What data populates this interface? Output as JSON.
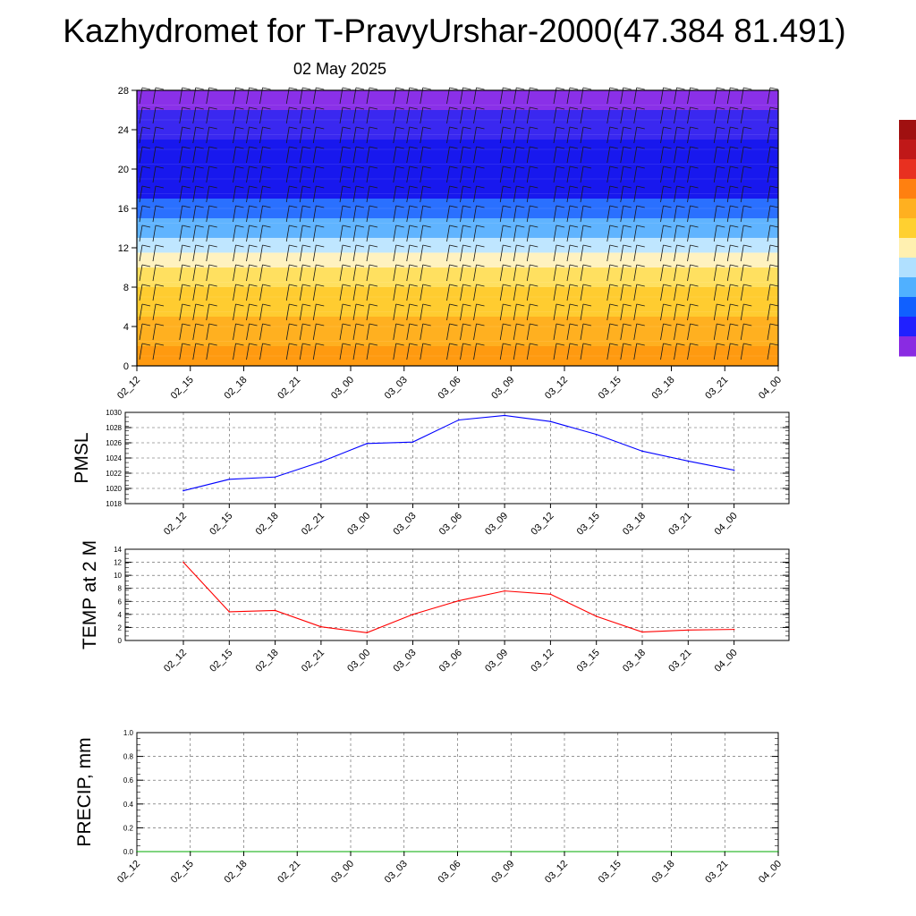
{
  "header": {
    "title": "Kazhydromet for T-PravyUrshar-2000(47.384 81.491)",
    "date": "02 May 2025"
  },
  "colors": {
    "pmsl_line": "#0000ff",
    "temp_line": "#ff0000",
    "precip_line": "#00aa00",
    "colorbar": [
      "#8a2be2",
      "#2020ff",
      "#1060ff",
      "#50b0ff",
      "#b0e0ff",
      "#fff0b0",
      "#ffd030",
      "#ffb020",
      "#ff8010",
      "#e83020",
      "#c01818",
      "#a01010",
      "#ffffff"
    ]
  },
  "chart_data": [
    {
      "type": "heatmap",
      "name": "vertical-profile",
      "x_tick_labels": [
        "02_12",
        "02_15",
        "02_18",
        "02_21",
        "03_00",
        "03_03",
        "03_06",
        "03_09",
        "03_12",
        "03_15",
        "03_18",
        "03_21",
        "04_00"
      ],
      "y_ticks": [
        0,
        4,
        8,
        12,
        16,
        20,
        24,
        28
      ],
      "ylim": [
        0,
        28
      ],
      "bands": [
        {
          "y_from": 0,
          "y_to": 2,
          "color": "#ff9a10"
        },
        {
          "y_from": 2,
          "y_to": 5,
          "color": "#ffb020"
        },
        {
          "y_from": 5,
          "y_to": 8,
          "color": "#ffcc30"
        },
        {
          "y_from": 8,
          "y_to": 10,
          "color": "#ffe060"
        },
        {
          "y_from": 10,
          "y_to": 11.5,
          "color": "#fff2c0"
        },
        {
          "y_from": 11.5,
          "y_to": 13,
          "color": "#bfe6ff"
        },
        {
          "y_from": 13,
          "y_to": 15,
          "color": "#60b4ff"
        },
        {
          "y_from": 15,
          "y_to": 17,
          "color": "#2a70ff"
        },
        {
          "y_from": 17,
          "y_to": 23,
          "color": "#1818ee"
        },
        {
          "y_from": 23,
          "y_to": 26,
          "color": "#3a28f0"
        },
        {
          "y_from": 26,
          "y_to": 28,
          "color": "#8a30e8"
        }
      ],
      "wind_barb_levels": [
        1,
        3,
        5,
        7,
        9,
        11,
        13,
        15,
        17,
        19,
        21,
        23,
        25,
        27
      ],
      "grid": false
    },
    {
      "type": "line",
      "name": "pmsl",
      "ylabel": "PMSL",
      "x_tick_labels": [
        "02_12",
        "02_15",
        "02_18",
        "02_21",
        "03_00",
        "03_03",
        "03_06",
        "03_09",
        "03_12",
        "03_15",
        "03_18",
        "03_21",
        "04_00"
      ],
      "y_ticks": [
        1018,
        1020,
        1022,
        1024,
        1026,
        1028,
        1030
      ],
      "ylim": [
        1018,
        1030
      ],
      "series": [
        {
          "values": [
            1019.7,
            1021.2,
            1021.5,
            1023.5,
            1025.9,
            1026.1,
            1029.0,
            1029.6,
            1028.8,
            1027.1,
            1024.9,
            1023.6,
            1022.4
          ]
        }
      ],
      "grid": true
    },
    {
      "type": "line",
      "name": "temp",
      "ylabel": "TEMP at 2 M",
      "x_tick_labels": [
        "02_12",
        "02_15",
        "02_18",
        "02_21",
        "03_00",
        "03_03",
        "03_06",
        "03_09",
        "03_12",
        "03_15",
        "03_18",
        "03_21",
        "04_00"
      ],
      "y_ticks": [
        0,
        2,
        4,
        6,
        8,
        10,
        12,
        14
      ],
      "ylim": [
        0,
        14
      ],
      "series": [
        {
          "values": [
            12.0,
            4.4,
            4.6,
            2.1,
            1.2,
            4.0,
            6.1,
            7.6,
            7.1,
            3.7,
            1.3,
            1.6,
            1.7
          ]
        }
      ],
      "grid": true
    },
    {
      "type": "line",
      "name": "precip",
      "ylabel": "PRECIP, mm",
      "x_tick_labels": [
        "02_12",
        "02_15",
        "02_18",
        "02_21",
        "03_00",
        "03_03",
        "03_06",
        "03_09",
        "03_12",
        "03_15",
        "03_18",
        "03_21",
        "04_00"
      ],
      "y_tick_labels": [
        "0.0",
        "0.2",
        "0.4",
        "0.6",
        "0.8",
        "1.0"
      ],
      "ylim": [
        0,
        1
      ],
      "series": [
        {
          "values": [
            0,
            0,
            0,
            0,
            0,
            0,
            0,
            0,
            0,
            0,
            0,
            0,
            0
          ]
        }
      ],
      "grid": true
    }
  ]
}
